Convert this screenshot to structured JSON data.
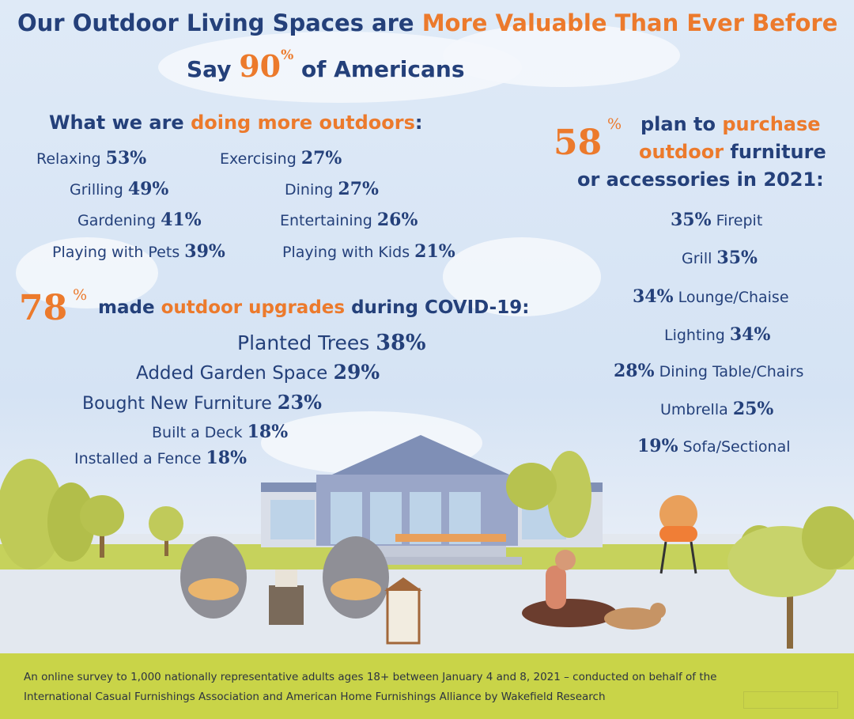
{
  "header": {
    "line1_part1": "Our Outdoor Living Spaces are ",
    "line1_part2": "More Valuable Than Ever Before",
    "line2_prefix": "Say ",
    "line2_number": "90",
    "line2_percent": "%",
    "line2_suffix": " of Americans"
  },
  "doing_more": {
    "title_part1": "What we are ",
    "title_part2": "doing more outdoors",
    "title_colon": ":",
    "activities": [
      {
        "label": "Relaxing",
        "value": "53%"
      },
      {
        "label": "Exercising",
        "value": "27%"
      },
      {
        "label": "Grilling",
        "value": "49%"
      },
      {
        "label": "Dining",
        "value": "27%"
      },
      {
        "label": "Gardening",
        "value": "41%"
      },
      {
        "label": "Entertaining",
        "value": "26%"
      },
      {
        "label": "Playing with Pets",
        "value": "39%"
      },
      {
        "label": "Playing with Kids",
        "value": "21%"
      }
    ]
  },
  "upgrades": {
    "big_number": "78",
    "percent": "%",
    "title_part1": "made ",
    "title_part2": "outdoor upgrades",
    "title_part3": " during COVID-19:",
    "items": [
      {
        "label": "Planted Trees",
        "value": "38%"
      },
      {
        "label": "Added Garden Space",
        "value": "29%"
      },
      {
        "label": "Bought New Furniture",
        "value": "23%"
      },
      {
        "label": "Built a Deck",
        "value": "18%"
      },
      {
        "label": "Installed a Fence",
        "value": "18%"
      }
    ]
  },
  "purchase": {
    "big_number": "58",
    "percent": "%",
    "line1_part1": "plan to ",
    "line1_part2": "purchase",
    "line2_part1": "outdoor",
    "line2_part2": " furniture",
    "line3": "or accessories in 2021:",
    "items": [
      {
        "label": "Firepit",
        "value": "35%"
      },
      {
        "label": "Grill",
        "value": "35%"
      },
      {
        "label": "Lounge/Chaise",
        "value": "34%"
      },
      {
        "label": "Lighting",
        "value": "34%"
      },
      {
        "label": "Dining Table/Chairs",
        "value": "28%"
      },
      {
        "label": "Umbrella",
        "value": "25%"
      },
      {
        "label": "Sofa/Sectional",
        "value": "19%"
      }
    ]
  },
  "footer": {
    "line1": "An online survey to 1,000 nationally representative adults ages 18+ between January 4 and 8, 2021 – conducted on behalf of the",
    "line2": "International Casual Furnishings Association and American Home Furnishings Alliance by Wakefield Research"
  },
  "colors": {
    "navy": "#24407a",
    "orange": "#ec7a2c",
    "footer_green": "#c9d448"
  }
}
